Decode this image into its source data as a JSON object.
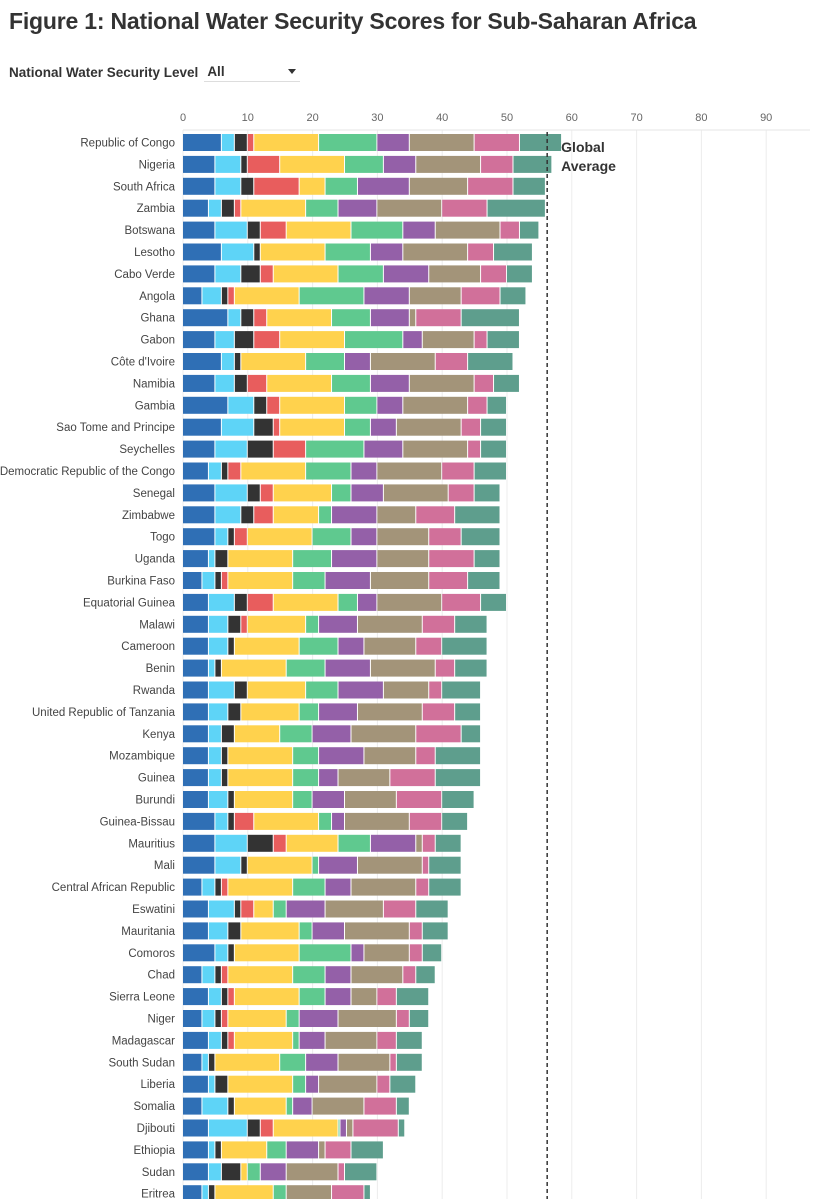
{
  "title": "Figure 1: National Water Security Scores for Sub-Saharan Africa",
  "filter": {
    "label": "National Water Security Level",
    "selected": "All"
  },
  "chart_data": {
    "type": "bar",
    "orientation": "horizontal",
    "stacked": true,
    "title": "Figure 1: National Water Security Scores for Sub-Saharan Africa",
    "xlabel": "",
    "ylabel": "",
    "xlim": [
      0,
      97
    ],
    "xticks": [
      0,
      10,
      20,
      30,
      40,
      50,
      60,
      70,
      80,
      90
    ],
    "grid": true,
    "legend": "none",
    "reference_line": {
      "label_lines": [
        "Global",
        "Average"
      ],
      "value": 56.2,
      "style": "dashed"
    },
    "series_colors": [
      "#2f6fb5",
      "#5ed4f7",
      "#333333",
      "#e85d5d",
      "#ffd24d",
      "#5fc98f",
      "#9460a8",
      "#a39479",
      "#d1709a",
      "#5e9e8d"
    ],
    "categories": [
      "Republic of Congo",
      "Nigeria",
      "South Africa",
      "Zambia",
      "Botswana",
      "Lesotho",
      "Cabo Verde",
      "Angola",
      "Ghana",
      "Gabon",
      "Côte d'Ivoire",
      "Namibia",
      "Gambia",
      "Sao Tome and Principe",
      "Seychelles",
      "Democratic Republic of the Congo",
      "Senegal",
      "Zimbabwe",
      "Togo",
      "Uganda",
      "Burkina Faso",
      "Equatorial Guinea",
      "Malawi",
      "Cameroon",
      "Benin",
      "Rwanda",
      "United Republic of Tanzania",
      "Kenya",
      "Mozambique",
      "Guinea",
      "Burundi",
      "Guinea-Bissau",
      "Mauritius",
      "Mali",
      "Central African Republic",
      "Eswatini",
      "Mauritania",
      "Comoros",
      "Chad",
      "Sierra Leone",
      "Niger",
      "Madagascar",
      "South Sudan",
      "Liberia",
      "Somalia",
      "Djibouti",
      "Ethiopia",
      "Sudan",
      "Eritrea"
    ],
    "rows": [
      [
        6,
        2,
        2,
        1,
        10,
        9,
        5,
        10,
        7,
        6.5
      ],
      [
        5,
        4,
        1,
        5,
        10,
        6,
        5,
        10,
        5,
        6
      ],
      [
        5,
        4,
        2,
        7,
        4,
        5,
        8,
        9,
        7,
        5
      ],
      [
        4,
        2,
        2,
        1,
        10,
        5,
        6,
        10,
        7,
        9
      ],
      [
        5,
        5,
        2,
        4,
        10,
        8,
        5,
        10,
        3,
        3
      ],
      [
        6,
        5,
        1,
        0,
        10,
        7,
        5,
        10,
        4,
        6
      ],
      [
        5,
        4,
        3,
        2,
        10,
        7,
        7,
        8,
        4,
        4
      ],
      [
        3,
        3,
        1,
        1,
        10,
        10,
        7,
        8,
        6,
        4
      ],
      [
        7,
        2,
        2,
        2,
        10,
        6,
        6,
        1,
        7,
        9
      ],
      [
        5,
        3,
        3,
        4,
        10,
        9,
        3,
        8,
        2,
        5
      ],
      [
        6,
        2,
        1,
        0,
        10,
        6,
        4,
        10,
        5,
        7
      ],
      [
        5,
        3,
        2,
        3,
        10,
        6,
        6,
        10,
        3,
        4
      ],
      [
        7,
        4,
        2,
        2,
        10,
        5,
        4,
        10,
        3,
        3
      ],
      [
        6,
        5,
        3,
        1,
        10,
        4,
        4,
        10,
        3,
        4
      ],
      [
        5,
        5,
        4,
        5,
        0,
        9,
        6,
        10,
        2,
        4
      ],
      [
        4,
        2,
        1,
        2,
        10,
        7,
        4,
        10,
        5,
        5
      ],
      [
        5,
        5,
        2,
        2,
        9,
        3,
        5,
        10,
        4,
        4
      ],
      [
        5,
        4,
        2,
        3,
        7,
        2,
        7,
        6,
        6,
        7
      ],
      [
        5,
        2,
        1,
        2,
        10,
        6,
        4,
        8,
        5,
        6
      ],
      [
        4,
        1,
        2,
        0,
        10,
        6,
        7,
        8,
        7,
        4
      ],
      [
        3,
        2,
        1,
        1,
        10,
        5,
        7,
        9,
        6,
        5
      ],
      [
        4,
        4,
        2,
        4,
        10,
        3,
        3,
        10,
        6,
        4
      ],
      [
        4,
        3,
        2,
        1,
        9,
        2,
        6,
        10,
        5,
        5
      ],
      [
        4,
        3,
        1,
        0,
        10,
        6,
        4,
        8,
        4,
        7
      ],
      [
        4,
        1,
        1,
        0,
        10,
        6,
        7,
        10,
        3,
        5
      ],
      [
        4,
        4,
        2,
        0,
        9,
        5,
        7,
        7,
        2,
        6
      ],
      [
        4,
        3,
        2,
        0,
        9,
        3,
        6,
        10,
        5,
        4
      ],
      [
        4,
        2,
        2,
        0,
        7,
        5,
        6,
        10,
        7,
        3
      ],
      [
        4,
        2,
        1,
        0,
        10,
        4,
        7,
        8,
        3,
        7
      ],
      [
        4,
        2,
        1,
        0,
        10,
        4,
        3,
        8,
        7,
        7
      ],
      [
        4,
        3,
        1,
        0,
        9,
        3,
        5,
        8,
        7,
        5
      ],
      [
        5,
        2,
        1,
        3,
        10,
        2,
        2,
        10,
        5,
        4
      ],
      [
        5,
        5,
        4,
        2,
        8,
        5,
        7,
        1,
        2,
        4
      ],
      [
        5,
        4,
        1,
        0,
        10,
        1,
        6,
        10,
        1,
        5
      ],
      [
        3,
        2,
        1,
        1,
        10,
        5,
        4,
        10,
        2,
        5
      ],
      [
        4,
        4,
        1,
        2,
        3,
        2,
        6,
        9,
        5,
        5
      ],
      [
        4,
        3,
        2,
        0,
        9,
        2,
        5,
        10,
        2,
        4
      ],
      [
        5,
        2,
        1,
        0,
        10,
        8,
        2,
        7,
        2,
        3
      ],
      [
        3,
        2,
        1,
        1,
        10,
        5,
        4,
        8,
        2,
        3
      ],
      [
        4,
        2,
        1,
        1,
        10,
        4,
        4,
        4,
        3,
        5
      ],
      [
        3,
        2,
        1,
        1,
        9,
        2,
        6,
        9,
        2,
        3
      ],
      [
        4,
        2,
        1,
        1,
        9,
        1,
        4,
        8,
        3,
        4
      ],
      [
        3,
        1,
        1,
        0,
        10,
        4,
        5,
        8,
        1,
        4
      ],
      [
        4,
        1,
        2,
        0,
        10,
        2,
        2,
        9,
        2,
        4
      ],
      [
        3,
        4,
        1,
        0,
        8,
        1,
        3,
        8,
        5,
        2
      ],
      [
        4,
        6,
        2,
        2,
        10,
        0.3,
        1,
        1,
        7,
        1
      ],
      [
        4,
        1,
        1,
        0,
        7,
        3,
        5,
        1,
        4,
        5
      ],
      [
        4,
        2,
        3,
        0,
        1,
        2,
        4,
        8,
        1,
        5
      ],
      [
        3,
        1,
        1,
        0,
        9,
        2,
        0,
        7,
        5,
        1
      ]
    ]
  }
}
